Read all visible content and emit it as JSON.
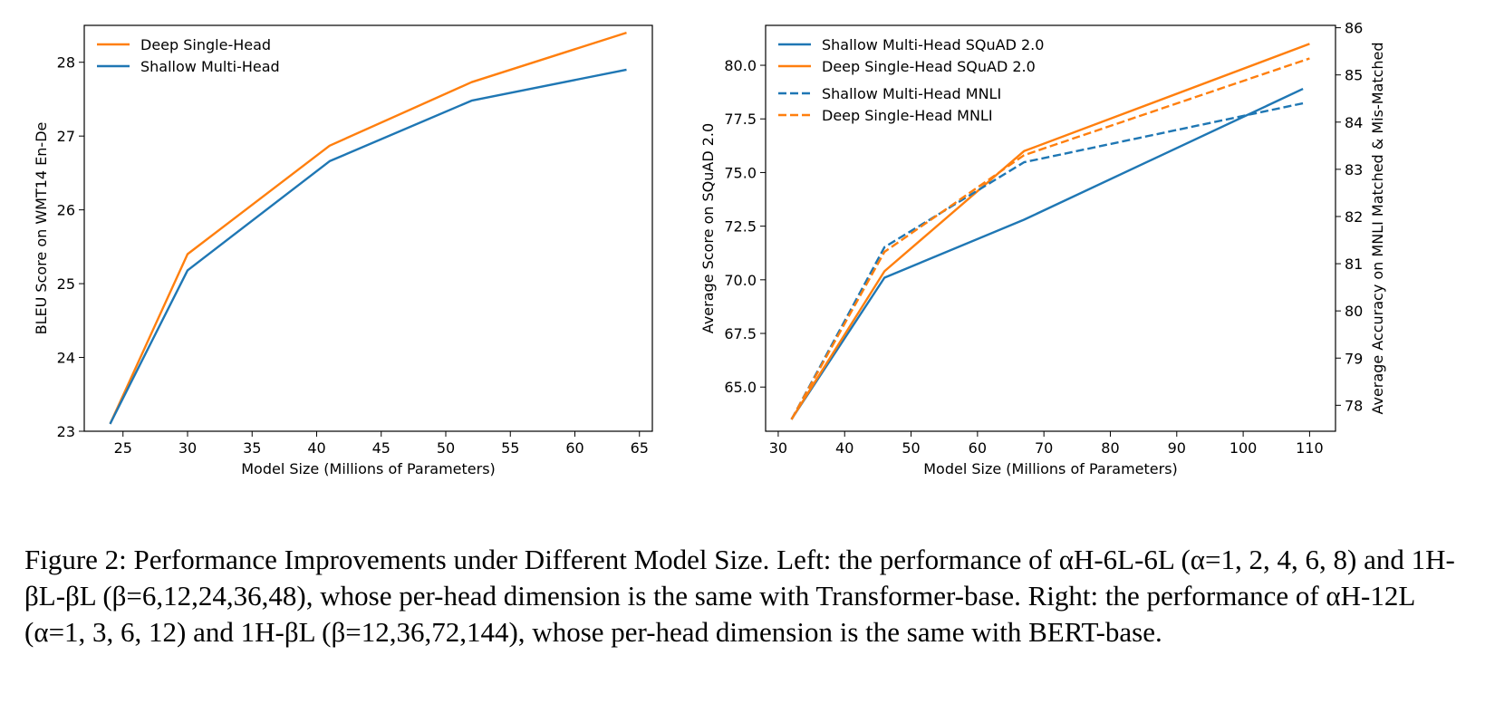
{
  "colors": {
    "blue": "#1f77b4",
    "orange": "#ff7f0e"
  },
  "chart_data": [
    {
      "type": "line",
      "xlabel": "Model Size (Millions of Parameters)",
      "ylabel": "BLEU Score on WMT14 En-De",
      "xlim": [
        22.0,
        66.0
      ],
      "ylim": [
        23.0,
        28.5
      ],
      "xticks": [
        25,
        30,
        35,
        40,
        45,
        50,
        55,
        60,
        65
      ],
      "yticks": [
        23,
        24,
        25,
        26,
        27,
        28
      ],
      "legend_position": "upper-left",
      "series": [
        {
          "name": "Deep Single-Head",
          "color": "orange",
          "dash": false,
          "x": [
            24,
            30,
            41,
            52,
            64
          ],
          "y": [
            23.1,
            25.4,
            26.87,
            27.73,
            28.4
          ]
        },
        {
          "name": "Shallow Multi-Head",
          "color": "blue",
          "dash": false,
          "x": [
            24,
            30,
            41,
            52,
            64
          ],
          "y": [
            23.1,
            25.18,
            26.66,
            27.48,
            27.9
          ]
        }
      ]
    },
    {
      "type": "line",
      "xlabel": "Model Size (Millions of Parameters)",
      "ylabel": "Average Score on SQuAD 2.0",
      "ylabel_right": "Average Accuracy on MNLI Matched & Mis-Matched",
      "xlim": [
        28.1,
        113.9
      ],
      "ylim": [
        62.94,
        81.86
      ],
      "ylim_right": [
        77.45,
        86.05
      ],
      "xticks": [
        30,
        40,
        50,
        60,
        70,
        80,
        90,
        100,
        110
      ],
      "yticks": [
        "65.0",
        "67.5",
        "70.0",
        "72.5",
        "75.0",
        "77.5",
        "80.0"
      ],
      "yticks_right": [
        78,
        79,
        80,
        81,
        82,
        83,
        84,
        85,
        86
      ],
      "legend_position": "upper-left",
      "series": [
        {
          "name": "Shallow Multi-Head SQuAD 2.0",
          "color": "blue",
          "dash": false,
          "axis": "left",
          "x": [
            32,
            46,
            67,
            109
          ],
          "y": [
            63.5,
            70.1,
            72.8,
            78.9
          ]
        },
        {
          "name": "Deep Single-Head SQuAD 2.0",
          "color": "orange",
          "dash": false,
          "axis": "left",
          "x": [
            32,
            46,
            67,
            110
          ],
          "y": [
            63.5,
            70.4,
            76.0,
            81.0
          ]
        },
        {
          "name": "Shallow Multi-Head MNLI",
          "color": "blue",
          "dash": true,
          "axis": "right",
          "x": [
            32,
            46,
            67,
            109
          ],
          "y": [
            77.7,
            81.35,
            83.15,
            84.4
          ]
        },
        {
          "name": "Deep Single-Head MNLI",
          "color": "orange",
          "dash": true,
          "axis": "right",
          "x": [
            32,
            46,
            67,
            110
          ],
          "y": [
            77.7,
            81.25,
            83.3,
            85.35
          ]
        }
      ]
    }
  ],
  "caption": "Figure 2: Performance Improvements under Different Model Size. Left: the performance of αH-6L-6L (α=1, 2, 4, 6, 8) and 1H-βL-βL (β=6,12,24,36,48), whose per-head dimension is the same with Transformer-base. Right: the performance of αH-12L (α=1, 3, 6, 12) and 1H-βL (β=12,36,72,144), whose per-head dimension is the same with BERT-base."
}
